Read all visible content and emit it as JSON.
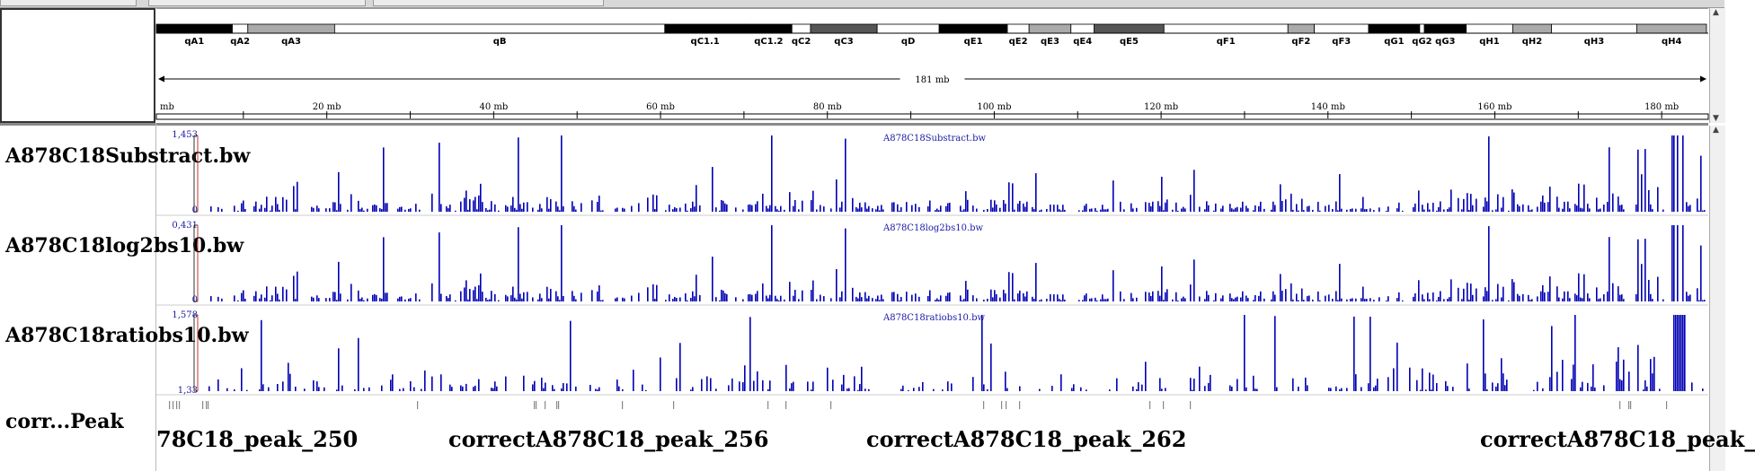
{
  "ideogram": {
    "bands": [
      {
        "name": "qA1",
        "start": 0,
        "end": 4.9,
        "stain": "black"
      },
      {
        "name": "qA2",
        "start": 4.9,
        "end": 5.9,
        "stain": "white"
      },
      {
        "name": "qA3",
        "start": 5.9,
        "end": 11.5,
        "stain": "lightgray"
      },
      {
        "name": "qB",
        "start": 11.5,
        "end": 32.8,
        "stain": "white"
      },
      {
        "name": "qC1.1",
        "start": 32.8,
        "end": 38.0,
        "stain": "black"
      },
      {
        "name": "qC1.2",
        "start": 38.0,
        "end": 41.0,
        "stain": "black"
      },
      {
        "name": "qC2",
        "start": 41.0,
        "end": 42.2,
        "stain": "white"
      },
      {
        "name": "qC3",
        "start": 42.2,
        "end": 46.5,
        "stain": "darkgray"
      },
      {
        "name": "qD",
        "start": 46.5,
        "end": 50.5,
        "stain": "white"
      },
      {
        "name": "qE1",
        "start": 50.5,
        "end": 54.9,
        "stain": "black"
      },
      {
        "name": "qE2",
        "start": 54.9,
        "end": 56.3,
        "stain": "white"
      },
      {
        "name": "qE3",
        "start": 56.3,
        "end": 59.0,
        "stain": "lightgray"
      },
      {
        "name": "qE4",
        "start": 59.0,
        "end": 60.5,
        "stain": "white"
      },
      {
        "name": "qE5",
        "start": 60.5,
        "end": 65.0,
        "stain": "darkgray"
      },
      {
        "name": "qF1",
        "start": 65.0,
        "end": 73.0,
        "stain": "white"
      },
      {
        "name": "qF2",
        "start": 73.0,
        "end": 74.7,
        "stain": "lightgray"
      },
      {
        "name": "qF3",
        "start": 74.7,
        "end": 78.2,
        "stain": "white"
      },
      {
        "name": "qG1",
        "start": 78.2,
        "end": 81.5,
        "stain": "black"
      },
      {
        "name": "qG2",
        "start": 81.5,
        "end": 81.8,
        "stain": "white"
      },
      {
        "name": "qG3",
        "start": 81.8,
        "end": 84.5,
        "stain": "black"
      },
      {
        "name": "qH1",
        "start": 84.5,
        "end": 87.5,
        "stain": "white"
      },
      {
        "name": "qH2",
        "start": 87.5,
        "end": 90.0,
        "stain": "lightgray"
      },
      {
        "name": "qH3",
        "start": 90.0,
        "end": 95.5,
        "stain": "white"
      },
      {
        "name": "qH4",
        "start": 95.5,
        "end": 100,
        "stain": "lightgray"
      }
    ],
    "colors": {
      "black": "#000000",
      "white": "#ffffff",
      "lightgray": "#aaaaaa",
      "darkgray": "#555555"
    }
  },
  "ruler": {
    "span_label": "181 mb",
    "ticks": [
      "mb",
      "20 mb",
      "40 mb",
      "60 mb",
      "80 mb",
      "100 mb",
      "120 mb",
      "140 mb",
      "160 mb",
      "180 mb"
    ]
  },
  "tracks": [
    {
      "name": "A878C18Substract.bw",
      "title": "A878C18Substract.bw",
      "range_max": "1,453",
      "range_min": "0",
      "seed": 11
    },
    {
      "name": "A878C18log2bs10.bw",
      "title": "A878C18log2bs10.bw",
      "range_max": "0,431",
      "range_min": "0",
      "seed": 11
    },
    {
      "name": "A878C18ratiobs10.bw",
      "title": "A878C18ratiobs10.bw",
      "range_max": "1,578",
      "range_min": "1,33",
      "seed": 29
    }
  ],
  "peak_track": {
    "name": "corr...Peak",
    "labels": [
      "78C18_peak_250",
      "correctA878C18_peak_256",
      "correctA878C18_peak_262",
      "correctA878C18_peak_"
    ]
  },
  "colors": {
    "signal": "#0000b4",
    "accent_red": "#b00000"
  }
}
